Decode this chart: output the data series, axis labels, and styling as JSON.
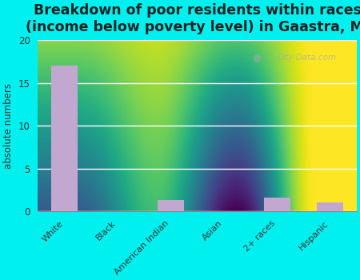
{
  "title": "Breakdown of poor residents within races\n(income below poverty level) in Gaastra, MI",
  "categories": [
    "White",
    "Black",
    "American Indian",
    "Asian",
    "2+ races",
    "Hispanic"
  ],
  "values": [
    17,
    0,
    1.3,
    0,
    1.6,
    1.1
  ],
  "bar_color": "#c2a8d0",
  "ylabel": "absolute numbers",
  "ylim": [
    0,
    20
  ],
  "yticks": [
    0,
    5,
    10,
    15,
    20
  ],
  "background_top": "#d8eec8",
  "background_bottom": "#f5faf0",
  "outer_background": "#00f0f0",
  "title_fontsize": 12.5,
  "title_fontweight": "bold",
  "title_color": "#222222",
  "grid_color": "#ffffff",
  "watermark": "City-Data.com"
}
